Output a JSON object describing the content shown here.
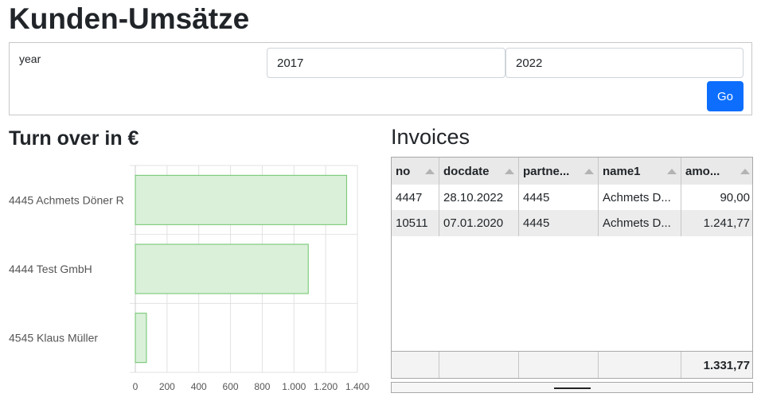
{
  "page": {
    "title": "Kunden-Umsätze"
  },
  "filter": {
    "label": "year",
    "year_from": "2017",
    "year_to": "2022",
    "go_label": "Go"
  },
  "chart_title": "Turn over in €",
  "chart_data": {
    "type": "bar",
    "orientation": "horizontal",
    "categories": [
      "4445 Achmets Döner R",
      "4444 Test GmbH",
      "4545 Klaus Müller"
    ],
    "values": [
      1331.77,
      1090,
      70
    ],
    "xlim": [
      0,
      1400
    ],
    "x_ticks": [
      0,
      200,
      400,
      600,
      800,
      1000,
      1200,
      1400
    ],
    "x_tick_labels": [
      "0",
      "200",
      "400",
      "600",
      "800",
      "1.000",
      "1.200",
      "1.400"
    ],
    "grid": true,
    "colors": {
      "fill": "#daf0d9",
      "stroke": "#6cc46a",
      "grid": "#e2e2e2",
      "tick": "#555555"
    }
  },
  "invoices": {
    "title": "Invoices",
    "columns": [
      "no",
      "docdate",
      "partne...",
      "name1",
      "amo..."
    ],
    "rows": [
      [
        "4447",
        "28.10.2022",
        "4445",
        "Achmets D...",
        "90,00"
      ],
      [
        "10511",
        "07.01.2020",
        "4445",
        "Achmets D...",
        "1.241,77"
      ]
    ],
    "total": "1.331,77"
  },
  "colors": {
    "accent": "#0d6efd"
  }
}
